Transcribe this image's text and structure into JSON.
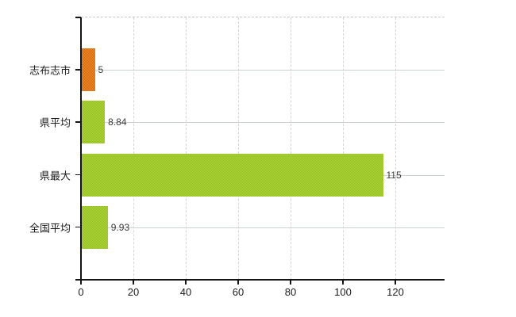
{
  "chart_data": {
    "type": "bar",
    "orientation": "horizontal",
    "title": "",
    "categories": [
      "志布志市",
      "県平均",
      "県最大",
      "全国平均"
    ],
    "values": [
      5,
      8.84,
      115,
      9.93
    ],
    "value_labels": [
      "5",
      "8.84",
      "115",
      "9.93"
    ],
    "bar_color_keys": [
      "orange",
      "green",
      "green",
      "green"
    ],
    "x_axis": {
      "ticks": [
        0,
        20,
        40,
        60,
        80,
        100,
        120
      ],
      "tick_labels": [
        "0",
        "20",
        "40",
        "60",
        "80",
        "100",
        "120"
      ],
      "range_max_visible": 138.8,
      "vertical_grid": "dashed",
      "horizontal_grid": "solid at category centers"
    },
    "legend": null,
    "colors": {
      "orange_light": "#ee8621",
      "orange_dark": "#d26d1a",
      "green_light": "#afd335",
      "green_dark": "#93c028",
      "axis": "#141414",
      "grid_vertical": "#d6d4d6",
      "grid_horizontal": "#cbd4ca",
      "plot_top_border": "#c8c5c2",
      "axis_text": "#1c1c1c",
      "value_text": "#3a3a3a",
      "background": "#ffffff"
    }
  }
}
